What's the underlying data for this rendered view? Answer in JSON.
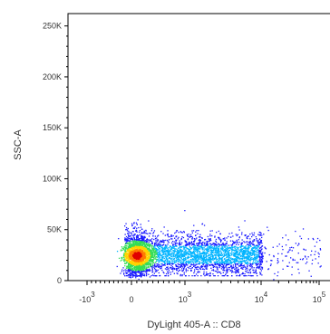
{
  "chart_data": {
    "type": "scatter",
    "title": "",
    "xlabel": "DyLight 405-A :: CD8",
    "ylabel": "SSC-A",
    "x_scale": "biexponential",
    "y_scale": "linear",
    "ylim": [
      0,
      262144
    ],
    "y_ticks": [
      {
        "value": 0,
        "label": "0"
      },
      {
        "value": 50000,
        "label": "50K"
      },
      {
        "value": 100000,
        "label": "100K"
      },
      {
        "value": 150000,
        "label": "150K"
      },
      {
        "value": 200000,
        "label": "200K"
      },
      {
        "value": 250000,
        "label": "250K"
      }
    ],
    "x_ticks": [
      {
        "value": -1000,
        "base": "-10",
        "exp": "3"
      },
      {
        "value": 0,
        "base": "0",
        "exp": ""
      },
      {
        "value": 1000,
        "base": "10",
        "exp": "3"
      },
      {
        "value": 10000,
        "base": "10",
        "exp": "4"
      },
      {
        "value": 100000,
        "base": "10",
        "exp": "5"
      }
    ],
    "density_colors": [
      "#1a1aff",
      "#00b4ff",
      "#33dd55",
      "#ffd400",
      "#ff7a00",
      "#e00000"
    ],
    "populations": [
      {
        "name": "CD8-negative cluster",
        "x_center": 100,
        "y_center": 25000,
        "count_level": "very high"
      },
      {
        "name": "CD8 spread",
        "x_range": [
          0,
          12000
        ],
        "y_range": [
          8000,
          62000
        ],
        "count_level": "high"
      },
      {
        "name": "outliers",
        "x_range": [
          12000,
          180000
        ],
        "y_range": [
          5000,
          65000
        ],
        "count_level": "low"
      }
    ],
    "grid": false,
    "legend": "none"
  }
}
